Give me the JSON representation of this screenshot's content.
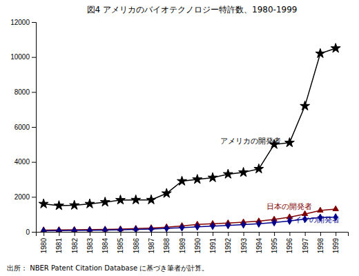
{
  "chart_data": {
    "type": "line",
    "title": "図4  アメリカのバイオテクノロジー特許数、1980-1999",
    "source": "出所：  NBER Patent Citation Database に基づき筆者が計算。",
    "x": [
      1980,
      1981,
      1982,
      1983,
      1984,
      1985,
      1986,
      1987,
      1988,
      1989,
      1990,
      1991,
      1992,
      1993,
      1994,
      1995,
      1996,
      1997,
      1998,
      1999
    ],
    "series": [
      {
        "color": "#000000",
        "marker": "star",
        "values": [
          1600,
          1500,
          1520,
          1600,
          1700,
          1820,
          1830,
          1830,
          2200,
          2900,
          3000,
          3100,
          3300,
          3400,
          3600,
          5000,
          5100,
          7200,
          10200,
          10500
        ]
      },
      {
        "color": "#800000",
        "marker": "triangle",
        "values": [
          100,
          110,
          120,
          130,
          140,
          160,
          185,
          220,
          270,
          340,
          420,
          460,
          500,
          550,
          610,
          710,
          840,
          1020,
          1220,
          1300
        ]
      },
      {
        "color": "#00008B",
        "marker": "diamond",
        "values": [
          60,
          70,
          80,
          90,
          100,
          115,
          135,
          160,
          195,
          240,
          290,
          330,
          370,
          410,
          460,
          530,
          620,
          730,
          820,
          840
        ]
      }
    ],
    "annotations": [
      {
        "text": "アメリカの開発者",
        "x": 1991.5,
        "y": 5200,
        "color": "#000000"
      },
      {
        "text": "日本の開発者",
        "x": 1994.5,
        "y": 1450,
        "color": "#800000"
      },
      {
        "text": "ドイツの開発者",
        "x": 1995.8,
        "y": 720,
        "color": "#00008B"
      }
    ],
    "xlim": [
      1979.5,
      1999.8
    ],
    "xticks": [
      1980,
      1981,
      1982,
      1983,
      1984,
      1985,
      1986,
      1987,
      1988,
      1989,
      1990,
      1991,
      1992,
      1993,
      1994,
      1995,
      1996,
      1997,
      1998,
      1999
    ],
    "ylim": [
      0,
      12000
    ],
    "yticks": [
      0,
      2000,
      4000,
      6000,
      8000,
      10000,
      12000
    ],
    "grid": false
  }
}
